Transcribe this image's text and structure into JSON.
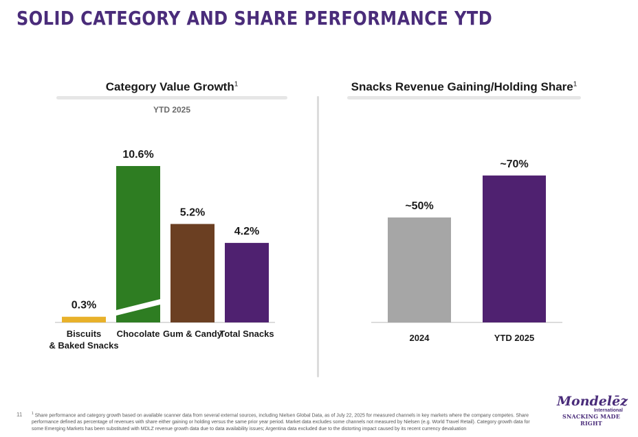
{
  "slide": {
    "title": "SOLID CATEGORY AND SHARE PERFORMANCE YTD",
    "page_number": "11",
    "footnote_marker": "1",
    "footnote": "Share performance and category growth based on available scanner data from several external sources, including Nielsen Global Data, as of July 22, 2025 for measured channels in key markets where the company competes. Share performance defined as percentage of revenues with share either gaining or holding versus the same prior year period. Market data excludes some channels not measured by Nielsen (e.g. World Travel Retail). Category growth data for some Emerging Markets has been substituted with MDLZ revenue growth data due to data availability issues; Argentina data excluded due to the distorting impact caused by its recent currency devaluation",
    "logo": {
      "name": "Mondelēz",
      "sub": "International",
      "tagline": "SNACKING MADE RIGHT"
    }
  },
  "chart_data": [
    {
      "type": "bar",
      "title": "Category Value Growth",
      "title_superscript": "1",
      "subtitle": "YTD 2025",
      "categories": [
        "Biscuits & Baked Snacks",
        "Chocolate",
        "Gum & Candy",
        "Total Snacks"
      ],
      "category_lines": [
        [
          "Biscuits",
          "& Baked Snacks"
        ],
        [
          "Chocolate"
        ],
        [
          "Gum & Candy"
        ],
        [
          "Total Snacks"
        ]
      ],
      "values": [
        0.3,
        10.6,
        5.2,
        4.2
      ],
      "data_labels": [
        "0.3%",
        "10.6%",
        "5.2%",
        "4.2%"
      ],
      "colors": [
        "#e8b12a",
        "#2e7d22",
        "#6b3f22",
        "#4f2170"
      ],
      "axis_break_on": "Chocolate",
      "grid": false,
      "legend": "none"
    },
    {
      "type": "bar",
      "title": "Snacks Revenue Gaining/Holding Share",
      "title_superscript": "1",
      "categories": [
        "2024",
        "YTD 2025"
      ],
      "values": [
        50,
        70
      ],
      "data_labels": [
        "~50%",
        "~70%"
      ],
      "colors": [
        "#a6a6a6",
        "#4f2170"
      ],
      "grid": false,
      "legend": "none"
    }
  ]
}
